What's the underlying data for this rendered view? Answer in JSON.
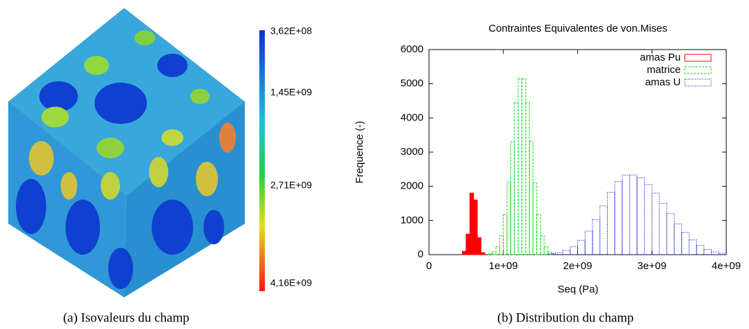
{
  "figure": {
    "colorbar_labels": [
      "3,62E+08",
      "1,45E+09",
      "2,71E+09",
      "4,16E+09"
    ],
    "captions": [
      "(a)  Isovaleurs du champ",
      "(b)  Distribution du champ"
    ]
  },
  "chart_data": {
    "type": "histogram",
    "title": "Contraintes Equivalentes de von.Mises",
    "x_label": "Seq (Pa)",
    "y_label": "Frequence (-)",
    "xlim": [
      0,
      4000000000.0
    ],
    "ylim": [
      0,
      6000
    ],
    "xticks": [
      0,
      {
        "value": 1000000000.0,
        "label": "1e+09"
      },
      {
        "value": 2000000000.0,
        "label": "2e+09"
      },
      {
        "value": 3000000000.0,
        "label": "3e+09"
      },
      {
        "value": 4000000000.0,
        "label": "4e+09"
      }
    ],
    "yticks": [
      0,
      1000,
      2000,
      3000,
      4000,
      5000,
      6000
    ],
    "legend": "upper right",
    "series": [
      {
        "name": "amas Pu",
        "color": "#ff0000",
        "linestyle": "solid",
        "filled": true,
        "bins": [
          450000000.0,
          500000000.0,
          550000000.0,
          600000000.0,
          650000000.0,
          700000000.0,
          750000000.0
        ],
        "values": [
          100,
          600,
          1800,
          1600,
          500,
          60
        ]
      },
      {
        "name": "matrice",
        "color": "#00dd00",
        "linestyle": "dashed",
        "filled": false,
        "bins": [
          800000000.0,
          850000000.0,
          900000000.0,
          950000000.0,
          1000000000.0,
          1050000000.0,
          1100000000.0,
          1150000000.0,
          1200000000.0,
          1250000000.0,
          1300000000.0,
          1350000000.0,
          1400000000.0,
          1450000000.0,
          1500000000.0,
          1550000000.0,
          1600000000.0,
          1650000000.0,
          1700000000.0
        ],
        "values": [
          25,
          82,
          230,
          556,
          1175,
          2110,
          3310,
          4450,
          5150,
          5150,
          4450,
          3310,
          2110,
          1175,
          556,
          230,
          82,
          25
        ]
      },
      {
        "name": "amas U",
        "color": "#0000cc",
        "linestyle": "dotted",
        "filled": false,
        "bins": [
          1600000000.0,
          1700000000.0,
          1800000000.0,
          1900000000.0,
          2000000000.0,
          2100000000.0,
          2200000000.0,
          2300000000.0,
          2400000000.0,
          2500000000.0,
          2600000000.0,
          2700000000.0,
          2800000000.0,
          2900000000.0,
          3000000000.0,
          3100000000.0,
          3200000000.0,
          3300000000.0,
          3400000000.0,
          3500000000.0,
          3600000000.0,
          3700000000.0,
          3800000000.0,
          3900000000.0,
          4000000000.0
        ],
        "values": [
          26,
          59,
          123,
          235,
          418,
          686,
          1025,
          1426,
          1824,
          2143,
          2327,
          2330,
          2250,
          2050,
          1800,
          1500,
          1200,
          900,
          650,
          430,
          270,
          150,
          80,
          40
        ]
      }
    ]
  }
}
